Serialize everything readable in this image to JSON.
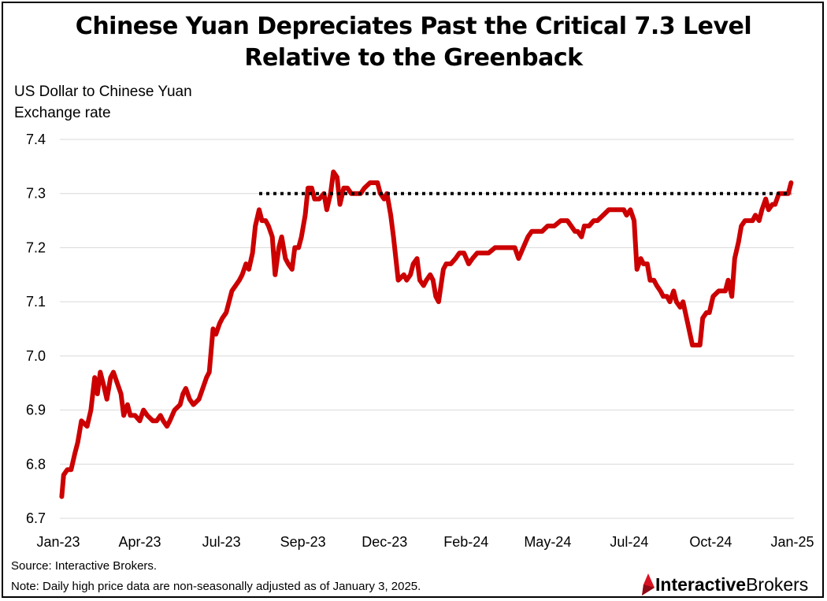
{
  "chart_data": {
    "type": "line",
    "title": "Chinese Yuan Depreciates Past the Critical 7.3 Level",
    "subtitle": "Relative to the Greenback",
    "ylabel_lines": [
      "US Dollar to Chinese Yuan",
      "Exchange rate"
    ],
    "ylim": [
      6.7,
      7.4
    ],
    "y_ticks": [
      "6.7",
      "6.8",
      "6.9",
      "7.0",
      "7.1",
      "7.2",
      "7.3",
      "7.4"
    ],
    "x_ticks": [
      "Jan-23",
      "Apr-23",
      "Jul-23",
      "Sep-23",
      "Dec-23",
      "Feb-24",
      "May-24",
      "Jul-24",
      "Oct-24",
      "Jan-25"
    ],
    "grid": true,
    "series": [
      {
        "color": "#cc0000",
        "points": [
          [
            "2023-01-03",
            6.74
          ],
          [
            "2023-01-05",
            6.78
          ],
          [
            "2023-01-09",
            6.79
          ],
          [
            "2023-01-13",
            6.79
          ],
          [
            "2023-01-17",
            6.82
          ],
          [
            "2023-01-20",
            6.84
          ],
          [
            "2023-01-24",
            6.88
          ],
          [
            "2023-01-30",
            6.87
          ],
          [
            "2023-02-03",
            6.9
          ],
          [
            "2023-02-07",
            6.96
          ],
          [
            "2023-02-10",
            6.93
          ],
          [
            "2023-02-13",
            6.97
          ],
          [
            "2023-02-16",
            6.95
          ],
          [
            "2023-02-20",
            6.92
          ],
          [
            "2023-02-24",
            6.96
          ],
          [
            "2023-02-27",
            6.97
          ],
          [
            "2023-03-03",
            6.95
          ],
          [
            "2023-03-07",
            6.93
          ],
          [
            "2023-03-10",
            6.89
          ],
          [
            "2023-03-14",
            6.91
          ],
          [
            "2023-03-17",
            6.89
          ],
          [
            "2023-03-22",
            6.89
          ],
          [
            "2023-03-27",
            6.88
          ],
          [
            "2023-03-31",
            6.9
          ],
          [
            "2023-04-04",
            6.89
          ],
          [
            "2023-04-10",
            6.88
          ],
          [
            "2023-04-14",
            6.88
          ],
          [
            "2023-04-18",
            6.89
          ],
          [
            "2023-04-21",
            6.88
          ],
          [
            "2023-04-25",
            6.87
          ],
          [
            "2023-04-28",
            6.88
          ],
          [
            "2023-05-03",
            6.9
          ],
          [
            "2023-05-09",
            6.91
          ],
          [
            "2023-05-12",
            6.93
          ],
          [
            "2023-05-15",
            6.94
          ],
          [
            "2023-05-19",
            6.92
          ],
          [
            "2023-05-23",
            6.91
          ],
          [
            "2023-05-29",
            6.92
          ],
          [
            "2023-06-02",
            6.94
          ],
          [
            "2023-06-06",
            6.96
          ],
          [
            "2023-06-09",
            6.97
          ],
          [
            "2023-06-13",
            7.05
          ],
          [
            "2023-06-16",
            7.04
          ],
          [
            "2023-06-20",
            7.06
          ],
          [
            "2023-06-23",
            7.07
          ],
          [
            "2023-06-27",
            7.08
          ],
          [
            "2023-07-03",
            7.12
          ],
          [
            "2023-07-07",
            7.13
          ],
          [
            "2023-07-11",
            7.14
          ],
          [
            "2023-07-14",
            7.15
          ],
          [
            "2023-07-18",
            7.17
          ],
          [
            "2023-07-21",
            7.16
          ],
          [
            "2023-07-25",
            7.19
          ],
          [
            "2023-07-28",
            7.24
          ],
          [
            "2023-08-01",
            7.27
          ],
          [
            "2023-08-04",
            7.25
          ],
          [
            "2023-08-08",
            7.25
          ],
          [
            "2023-08-11",
            7.24
          ],
          [
            "2023-08-15",
            7.22
          ],
          [
            "2023-08-18",
            7.15
          ],
          [
            "2023-08-22",
            7.2
          ],
          [
            "2023-08-25",
            7.22
          ],
          [
            "2023-08-29",
            7.18
          ],
          [
            "2023-09-01",
            7.17
          ],
          [
            "2023-09-05",
            7.16
          ],
          [
            "2023-09-08",
            7.2
          ],
          [
            "2023-09-12",
            7.2
          ],
          [
            "2023-09-15",
            7.22
          ],
          [
            "2023-09-19",
            7.26
          ],
          [
            "2023-09-22",
            7.31
          ],
          [
            "2023-09-26",
            7.31
          ],
          [
            "2023-09-29",
            7.29
          ],
          [
            "2023-10-04",
            7.29
          ],
          [
            "2023-10-09",
            7.3
          ],
          [
            "2023-10-12",
            7.27
          ],
          [
            "2023-10-16",
            7.3
          ],
          [
            "2023-10-19",
            7.34
          ],
          [
            "2023-10-23",
            7.33
          ],
          [
            "2023-10-26",
            7.28
          ],
          [
            "2023-10-30",
            7.31
          ],
          [
            "2023-11-03",
            7.31
          ],
          [
            "2023-11-07",
            7.3
          ],
          [
            "2023-11-13",
            7.3
          ],
          [
            "2023-11-17",
            7.3
          ],
          [
            "2023-11-21",
            7.31
          ],
          [
            "2023-11-27",
            7.32
          ],
          [
            "2023-12-01",
            7.32
          ],
          [
            "2023-12-05",
            7.32
          ],
          [
            "2023-12-08",
            7.3
          ],
          [
            "2023-12-12",
            7.29
          ],
          [
            "2023-12-15",
            7.3
          ],
          [
            "2023-12-19",
            7.26
          ],
          [
            "2023-12-22",
            7.22
          ],
          [
            "2023-12-27",
            7.14
          ],
          [
            "2024-01-02",
            7.15
          ],
          [
            "2024-01-05",
            7.14
          ],
          [
            "2024-01-09",
            7.15
          ],
          [
            "2024-01-12",
            7.17
          ],
          [
            "2024-01-16",
            7.18
          ],
          [
            "2024-01-19",
            7.14
          ],
          [
            "2024-01-23",
            7.13
          ],
          [
            "2024-01-26",
            7.14
          ],
          [
            "2024-01-30",
            7.15
          ],
          [
            "2024-02-02",
            7.14
          ],
          [
            "2024-02-05",
            7.11
          ],
          [
            "2024-02-08",
            7.1
          ],
          [
            "2024-02-13",
            7.16
          ],
          [
            "2024-02-16",
            7.17
          ],
          [
            "2024-02-21",
            7.17
          ],
          [
            "2024-02-26",
            7.18
          ],
          [
            "2024-03-01",
            7.19
          ],
          [
            "2024-03-06",
            7.19
          ],
          [
            "2024-03-11",
            7.17
          ],
          [
            "2024-03-15",
            7.18
          ],
          [
            "2024-03-20",
            7.19
          ],
          [
            "2024-03-26",
            7.19
          ],
          [
            "2024-04-01",
            7.19
          ],
          [
            "2024-04-08",
            7.2
          ],
          [
            "2024-04-15",
            7.2
          ],
          [
            "2024-04-22",
            7.2
          ],
          [
            "2024-04-29",
            7.2
          ],
          [
            "2024-05-03",
            7.18
          ],
          [
            "2024-05-08",
            7.2
          ],
          [
            "2024-05-13",
            7.22
          ],
          [
            "2024-05-17",
            7.23
          ],
          [
            "2024-05-22",
            7.23
          ],
          [
            "2024-05-28",
            7.23
          ],
          [
            "2024-06-03",
            7.24
          ],
          [
            "2024-06-10",
            7.24
          ],
          [
            "2024-06-17",
            7.25
          ],
          [
            "2024-06-24",
            7.25
          ],
          [
            "2024-06-28",
            7.24
          ],
          [
            "2024-07-02",
            7.23
          ],
          [
            "2024-07-05",
            7.23
          ],
          [
            "2024-07-09",
            7.22
          ],
          [
            "2024-07-12",
            7.24
          ],
          [
            "2024-07-17",
            7.24
          ],
          [
            "2024-07-22",
            7.25
          ],
          [
            "2024-07-26",
            7.25
          ],
          [
            "2024-08-01",
            7.26
          ],
          [
            "2024-08-07",
            7.27
          ],
          [
            "2024-08-13",
            7.27
          ],
          [
            "2024-08-19",
            7.27
          ],
          [
            "2024-08-23",
            7.27
          ],
          [
            "2024-08-26",
            7.26
          ],
          [
            "2024-08-30",
            7.27
          ],
          [
            "2024-09-03",
            7.25
          ],
          [
            "2024-09-06",
            7.16
          ],
          [
            "2024-09-10",
            7.18
          ],
          [
            "2024-09-13",
            7.17
          ],
          [
            "2024-09-17",
            7.17
          ],
          [
            "2024-09-20",
            7.14
          ],
          [
            "2024-09-24",
            7.14
          ],
          [
            "2024-09-27",
            7.13
          ],
          [
            "2024-10-01",
            7.12
          ],
          [
            "2024-10-04",
            7.11
          ],
          [
            "2024-10-08",
            7.11
          ],
          [
            "2024-10-11",
            7.1
          ],
          [
            "2024-10-15",
            7.12
          ],
          [
            "2024-10-18",
            7.1
          ],
          [
            "2024-10-22",
            7.09
          ],
          [
            "2024-10-25",
            7.1
          ],
          [
            "2024-10-30",
            7.06
          ],
          [
            "2024-11-04",
            7.02
          ],
          [
            "2024-11-08",
            7.02
          ],
          [
            "2024-11-12",
            7.02
          ],
          [
            "2024-11-15",
            7.07
          ],
          [
            "2024-11-19",
            7.08
          ],
          [
            "2024-11-22",
            7.08
          ],
          [
            "2024-11-26",
            7.11
          ],
          [
            "2024-12-02",
            7.12
          ],
          [
            "2024-12-05",
            7.12
          ],
          [
            "2024-12-09",
            7.12
          ],
          [
            "2024-12-12",
            7.14
          ],
          [
            "2024-12-16",
            7.11
          ],
          [
            "2024-12-19",
            7.18
          ],
          [
            "2024-12-23",
            7.21
          ],
          [
            "2024-12-26",
            7.24
          ],
          [
            "2024-12-30",
            7.25
          ],
          [
            "2025-01-03",
            7.25
          ],
          [
            "2025-01-07",
            7.25
          ],
          [
            "2025-01-10",
            7.26
          ],
          [
            "2025-01-14",
            7.25
          ],
          [
            "2025-01-17",
            7.27
          ],
          [
            "2025-01-21",
            7.29
          ],
          [
            "2025-01-24",
            7.27
          ],
          [
            "2025-01-28",
            7.28
          ],
          [
            "2025-01-31",
            7.28
          ],
          [
            "2025-02-04",
            7.3
          ],
          [
            "2025-02-07",
            7.3
          ],
          [
            "2025-02-11",
            7.3
          ],
          [
            "2025-02-14",
            7.3
          ],
          [
            "2025-02-17",
            7.32
          ]
        ]
      },
      {
        "color": "#000000",
        "style": "dotted",
        "points": [
          [
            "2023-08-01",
            7.3
          ],
          [
            "2025-02-17",
            7.3
          ]
        ]
      }
    ]
  },
  "footer": {
    "source": "Source: Interactive Brokers.",
    "note": "Note: Daily high price data are non-seasonally adjusted as of January 3, 2025.",
    "logo_text_1": "Interactive",
    "logo_text_2": "Brokers"
  },
  "colors": {
    "line": "#cc0000",
    "grid": "#d9d9d9",
    "logo_red": "#d81222"
  },
  "icons": {
    "logo": "interactive-brokers-logo-icon"
  }
}
